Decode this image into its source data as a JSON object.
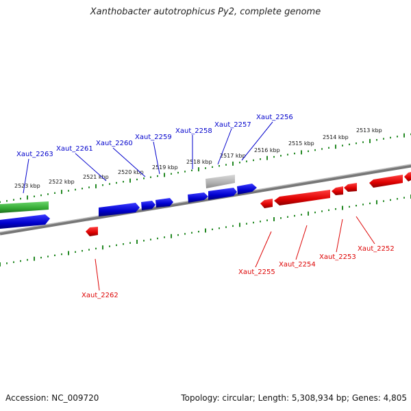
{
  "title": "Xanthobacter autotrophicus Py2, complete genome",
  "footer": {
    "accession": "Accession: NC_009720",
    "summary": "Topology: circular; Length: 5,308,934 bp; Genes: 4,805"
  },
  "colors": {
    "forward_gene": "#0000cc",
    "reverse_gene": "#dd0000",
    "rna_gene": "#33aa33",
    "pseudo_gene": "#b0b0b0",
    "backbone": "#888888",
    "tick": "#228822"
  },
  "scale_labels": [
    "2523 kbp",
    "2522 kbp",
    "2521 kbp",
    "2520 kbp",
    "2519 kbp",
    "2518 kbp",
    "2517 kbp",
    "2516 kbp",
    "2515 kbp",
    "2514 kbp",
    "2513 kbp"
  ],
  "forward_labels": [
    "Xaut_2263",
    "Xaut_2261",
    "Xaut_2260",
    "Xaut_2259",
    "Xaut_2258",
    "Xaut_2257",
    "Xaut_2256"
  ],
  "reverse_labels": [
    "Xaut_2262",
    "Xaut_2255",
    "Xaut_2254",
    "Xaut_2253",
    "Xaut_2252"
  ]
}
